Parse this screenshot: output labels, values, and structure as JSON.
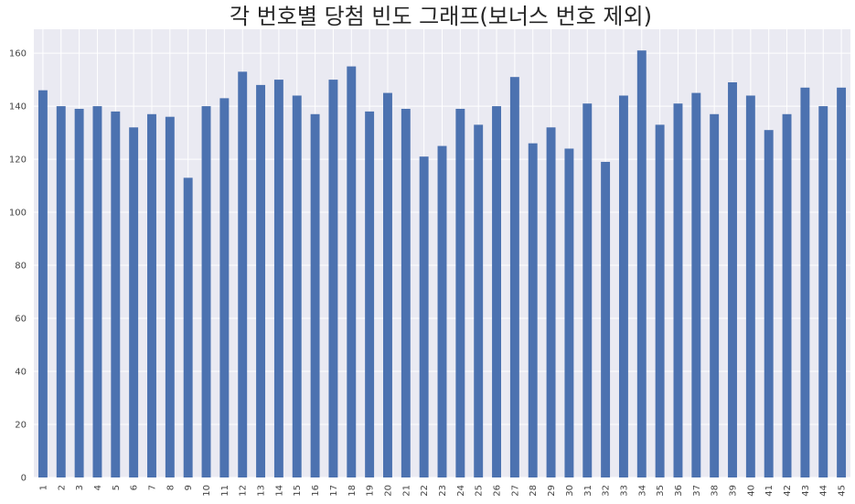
{
  "chart_data": {
    "type": "bar",
    "title": "각 번호별 당첨 빈도 그래프(보너스 번호 제외)",
    "xlabel": "",
    "ylabel": "",
    "categories": [
      "1",
      "2",
      "3",
      "4",
      "5",
      "6",
      "7",
      "8",
      "9",
      "10",
      "11",
      "12",
      "13",
      "14",
      "15",
      "16",
      "17",
      "18",
      "19",
      "20",
      "21",
      "22",
      "23",
      "24",
      "25",
      "26",
      "27",
      "28",
      "29",
      "30",
      "31",
      "32",
      "33",
      "34",
      "35",
      "36",
      "37",
      "38",
      "39",
      "40",
      "41",
      "42",
      "43",
      "44",
      "45"
    ],
    "values": [
      146,
      140,
      139,
      140,
      138,
      132,
      137,
      136,
      113,
      140,
      143,
      153,
      148,
      150,
      144,
      137,
      150,
      155,
      138,
      145,
      139,
      121,
      125,
      139,
      133,
      140,
      151,
      126,
      132,
      124,
      141,
      119,
      144,
      161,
      133,
      141,
      145,
      137,
      149,
      144,
      131,
      137,
      147,
      140,
      147
    ],
    "ylim": [
      0,
      169
    ],
    "yticks": [
      0,
      20,
      40,
      60,
      80,
      100,
      120,
      140,
      160
    ],
    "grid": true,
    "legend": "none",
    "colors": {
      "bar": "#4c72b0",
      "plot_bg": "#eaeaf2",
      "grid": "#ffffff"
    }
  }
}
